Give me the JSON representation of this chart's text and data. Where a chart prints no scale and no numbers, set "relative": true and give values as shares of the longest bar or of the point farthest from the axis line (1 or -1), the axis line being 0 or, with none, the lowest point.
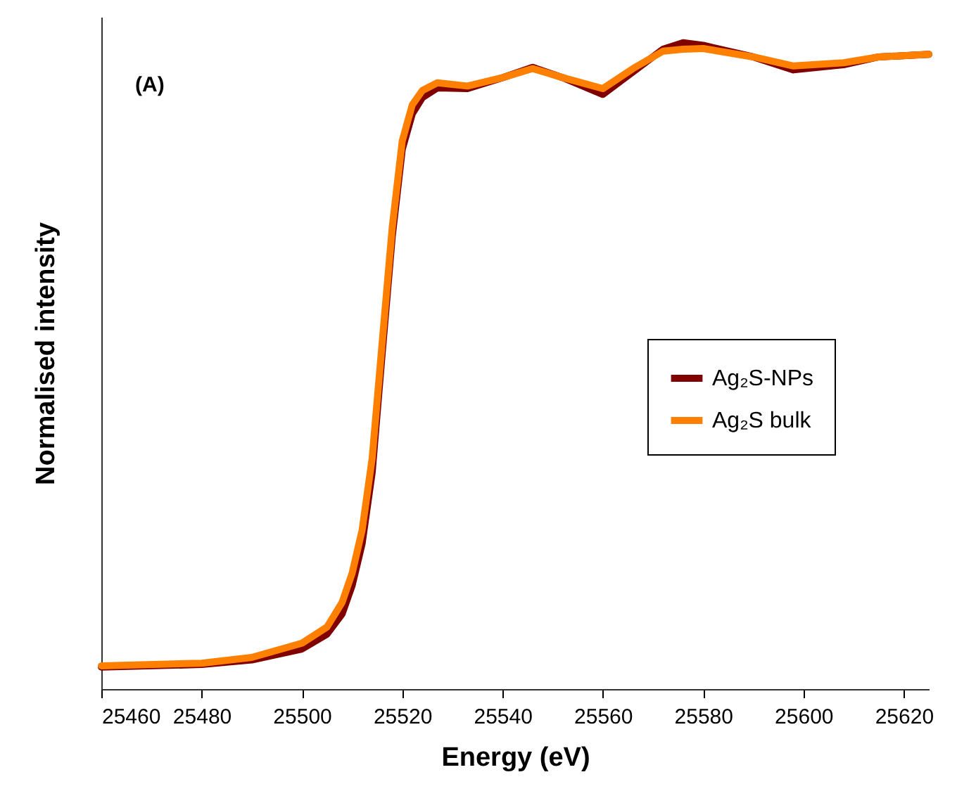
{
  "chart_data": {
    "type": "line",
    "xlabel": "Energy (eV)",
    "ylabel": "Normalised intensity",
    "relative": true,
    "tick_labels": "x",
    "xlim": [
      25460,
      25625
    ],
    "xticks": [
      25460,
      25480,
      25500,
      25520,
      25540,
      25560,
      25580,
      25600,
      25620
    ],
    "x": [
      25460,
      25480,
      25490,
      25500,
      25505,
      25508,
      25510,
      25512,
      25514,
      25516,
      25518,
      25520,
      25522,
      25524,
      25527,
      25533,
      25540,
      25546,
      25552,
      25560,
      25566,
      25572,
      25576,
      25580,
      25590,
      25598,
      25608,
      25615,
      25625
    ],
    "series": [
      {
        "name": "Ag₂S-NPs",
        "color": "#800000",
        "values": [
          0.034,
          0.038,
          0.045,
          0.062,
          0.085,
          0.116,
          0.16,
          0.225,
          0.335,
          0.52,
          0.7,
          0.835,
          0.89,
          0.915,
          0.93,
          0.929,
          0.946,
          0.962,
          0.946,
          0.92,
          0.955,
          0.99,
          1.0,
          0.996,
          0.978,
          0.958,
          0.966,
          0.978,
          0.982
        ]
      },
      {
        "name": "Ag₂S bulk",
        "color": "#ff8000",
        "values": [
          0.036,
          0.04,
          0.049,
          0.071,
          0.096,
          0.134,
          0.179,
          0.246,
          0.357,
          0.536,
          0.714,
          0.848,
          0.904,
          0.926,
          0.938,
          0.933,
          0.946,
          0.96,
          0.946,
          0.929,
          0.96,
          0.987,
          0.99,
          0.991,
          0.978,
          0.964,
          0.969,
          0.978,
          0.982
        ]
      }
    ],
    "legend": "right",
    "annotations": [
      "(A)"
    ]
  }
}
